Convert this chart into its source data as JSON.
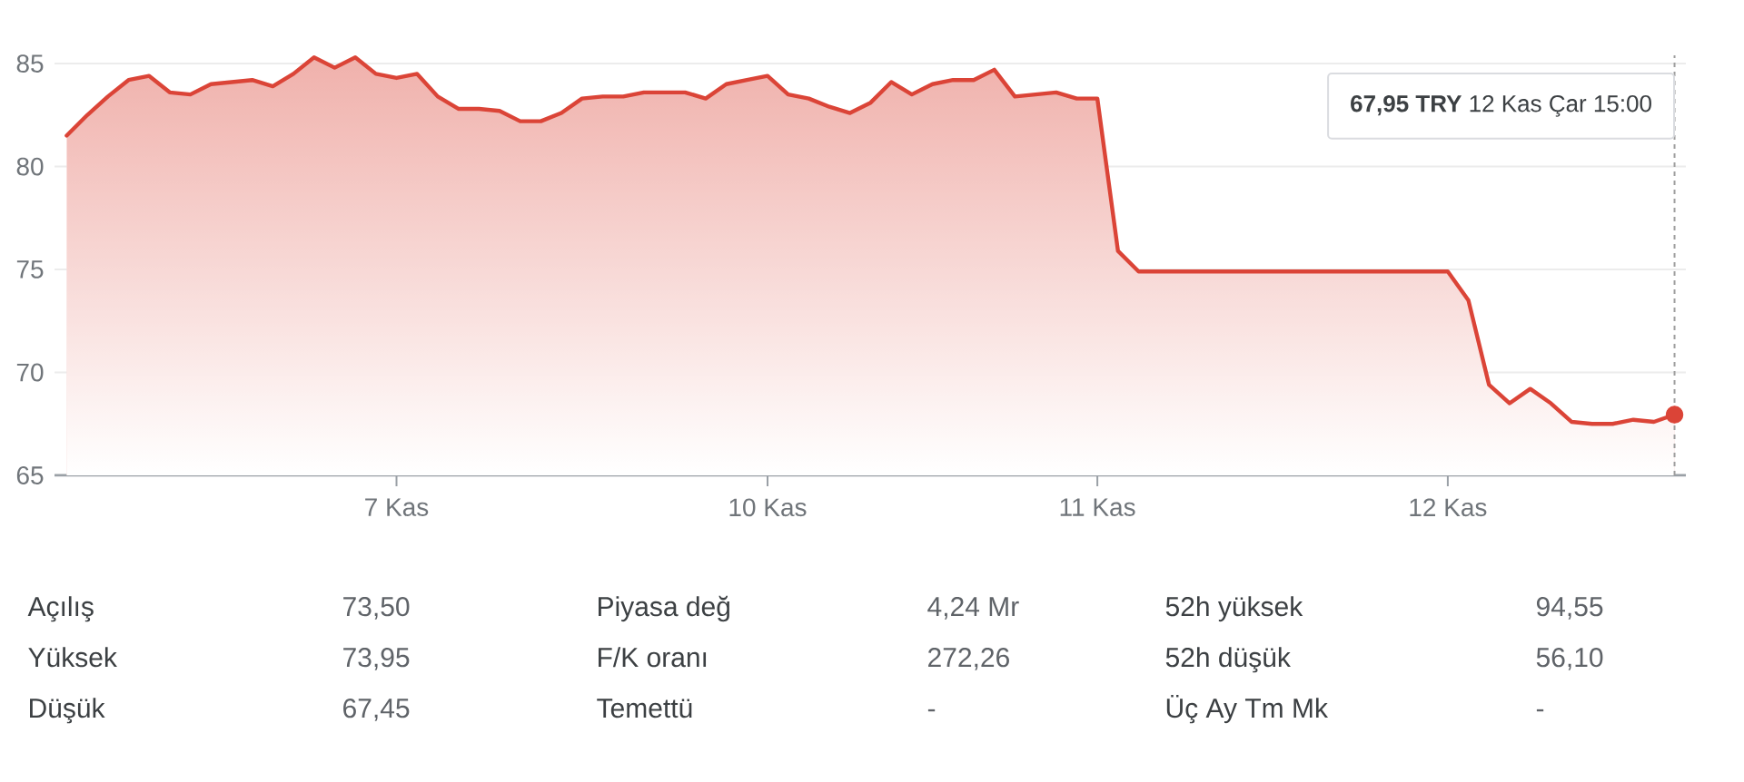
{
  "chart_data": [
    {
      "type": "area",
      "categories": [
        null,
        null,
        null,
        null,
        null,
        null,
        null,
        null,
        null,
        null,
        null,
        null,
        null,
        null,
        null,
        null,
        "7 Kas",
        null,
        null,
        null,
        null,
        null,
        null,
        null,
        null,
        null,
        null,
        null,
        null,
        null,
        null,
        null,
        null,
        null,
        "10 Kas",
        null,
        null,
        null,
        null,
        null,
        null,
        null,
        null,
        null,
        null,
        null,
        null,
        null,
        null,
        null,
        "11 Kas",
        null,
        null,
        null,
        null,
        null,
        null,
        null,
        null,
        null,
        null,
        null,
        null,
        null,
        null,
        null,
        null,
        "12 Kas",
        null,
        null,
        null,
        null,
        null,
        null,
        null,
        null,
        null,
        null,
        null
      ],
      "series": [
        {
          "color": "#db4437",
          "values": [
            81.5,
            82.5,
            83.4,
            84.2,
            84.4,
            83.6,
            83.5,
            84.0,
            84.1,
            84.2,
            83.9,
            84.5,
            85.3,
            84.8,
            85.3,
            84.5,
            84.3,
            84.5,
            83.4,
            82.8,
            82.8,
            82.7,
            82.2,
            82.2,
            82.6,
            83.3,
            83.4,
            83.4,
            83.6,
            83.6,
            83.6,
            83.3,
            84.0,
            84.2,
            84.4,
            83.5,
            83.3,
            82.9,
            82.6,
            83.1,
            84.1,
            83.5,
            84.0,
            84.2,
            84.2,
            84.7,
            83.4,
            83.5,
            83.6,
            83.3,
            83.3,
            75.9,
            74.9,
            74.9,
            74.9,
            74.9,
            74.9,
            74.9,
            74.9,
            74.9,
            74.9,
            74.9,
            74.9,
            74.9,
            74.9,
            74.9,
            74.9,
            74.9,
            73.5,
            69.4,
            68.5,
            69.2,
            68.5,
            67.6,
            67.5,
            67.5,
            67.7,
            67.6,
            67.95
          ]
        },
        {
          "type": "scatter",
          "color": "#db4437",
          "values": [
            null,
            null,
            null,
            null,
            null,
            null,
            null,
            null,
            null,
            null,
            null,
            null,
            null,
            null,
            null,
            null,
            null,
            null,
            null,
            null,
            null,
            null,
            null,
            null,
            null,
            null,
            null,
            null,
            null,
            null,
            null,
            null,
            null,
            null,
            null,
            null,
            null,
            null,
            null,
            null,
            null,
            null,
            null,
            null,
            null,
            null,
            null,
            null,
            null,
            null,
            null,
            null,
            null,
            null,
            null,
            null,
            null,
            null,
            null,
            null,
            null,
            null,
            null,
            null,
            null,
            null,
            null,
            null,
            null,
            null,
            null,
            null,
            null,
            null,
            null,
            null,
            null,
            null,
            67.95
          ]
        }
      ],
      "ylim": [
        65,
        85.4
      ],
      "yticks": [
        65,
        70,
        75,
        80,
        85
      ],
      "grid": "y",
      "line_style": "solid",
      "annotations": [
        "**67,95 TRY** 12 Kas Çar 15:00"
      ]
    },
    {
      "type": "other",
      "annotations": [
        "Açılış",
        "73,50",
        "Piyasa değ",
        "4,24 Mr",
        "52h yüksek",
        "94,55",
        "Yüksek",
        "73,95",
        "F/K oranı",
        "272,26",
        "52h düşük",
        "56,10",
        "Düşük",
        "67,45",
        "Temettü",
        "-",
        "Üç Ay Tm Mk",
        "-"
      ]
    }
  ]
}
